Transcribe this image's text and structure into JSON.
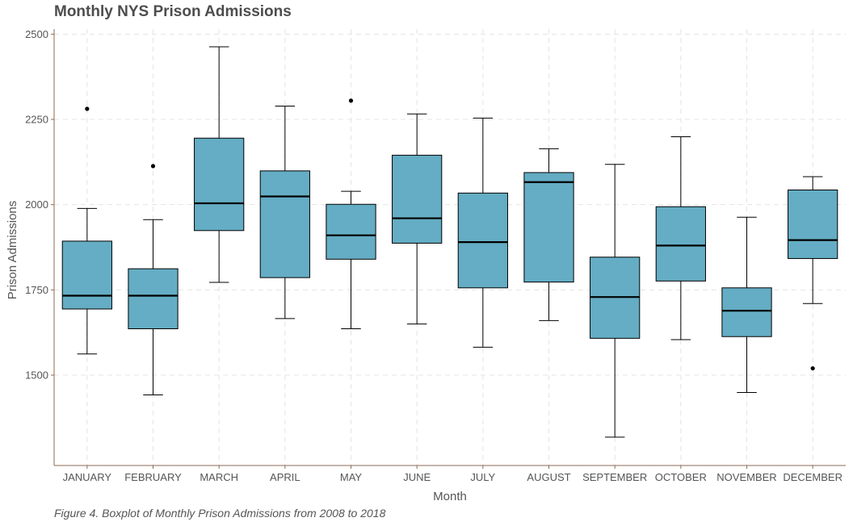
{
  "chart_data": {
    "type": "boxplot",
    "title": "Monthly NYS Prison Admissions",
    "caption": "Figure 4. Boxplot of Monthly Prison Admissions from 2008 to 2018",
    "xlabel": "Month",
    "ylabel": "Prison Admissions",
    "ylim": [
      1235,
      2515
    ],
    "yticks": [
      1500,
      1750,
      2000,
      2250,
      2500
    ],
    "grid": true,
    "colors": {
      "box_fill": "#64adc4",
      "box_stroke": "#000000",
      "axis": "#8b6b55",
      "grid": "#e4e4e4"
    },
    "categories": [
      "JANUARY",
      "FEBRUARY",
      "MARCH",
      "APRIL",
      "MAY",
      "JUNE",
      "JULY",
      "AUGUST",
      "SEPTEMBER",
      "OCTOBER",
      "NOVEMBER",
      "DECEMBER"
    ],
    "boxes": [
      {
        "min": 1562,
        "q1": 1694,
        "median": 1733,
        "q3": 1893,
        "max": 1989,
        "outliers": [
          2281
        ]
      },
      {
        "min": 1442,
        "q1": 1636,
        "median": 1733,
        "q3": 1812,
        "max": 1956,
        "outliers": [
          2113
        ]
      },
      {
        "min": 1772,
        "q1": 1924,
        "median": 2004,
        "q3": 2195,
        "max": 2463,
        "outliers": []
      },
      {
        "min": 1666,
        "q1": 1786,
        "median": 2024,
        "q3": 2099,
        "max": 2289,
        "outliers": []
      },
      {
        "min": 1636,
        "q1": 1840,
        "median": 1910,
        "q3": 2001,
        "max": 2039,
        "outliers": [
          2305
        ]
      },
      {
        "min": 1650,
        "q1": 1887,
        "median": 1960,
        "q3": 2145,
        "max": 2266,
        "outliers": []
      },
      {
        "min": 1582,
        "q1": 1756,
        "median": 1890,
        "q3": 2034,
        "max": 2254,
        "outliers": []
      },
      {
        "min": 1660,
        "q1": 1773,
        "median": 2066,
        "q3": 2094,
        "max": 2164,
        "outliers": []
      },
      {
        "min": 1318,
        "q1": 1608,
        "median": 1729,
        "q3": 1846,
        "max": 2118,
        "outliers": []
      },
      {
        "min": 1604,
        "q1": 1776,
        "median": 1880,
        "q3": 1994,
        "max": 2199,
        "outliers": []
      },
      {
        "min": 1449,
        "q1": 1613,
        "median": 1689,
        "q3": 1756,
        "max": 1963,
        "outliers": []
      },
      {
        "min": 1710,
        "q1": 1842,
        "median": 1896,
        "q3": 2043,
        "max": 2082,
        "outliers": [
          1520
        ]
      }
    ]
  }
}
